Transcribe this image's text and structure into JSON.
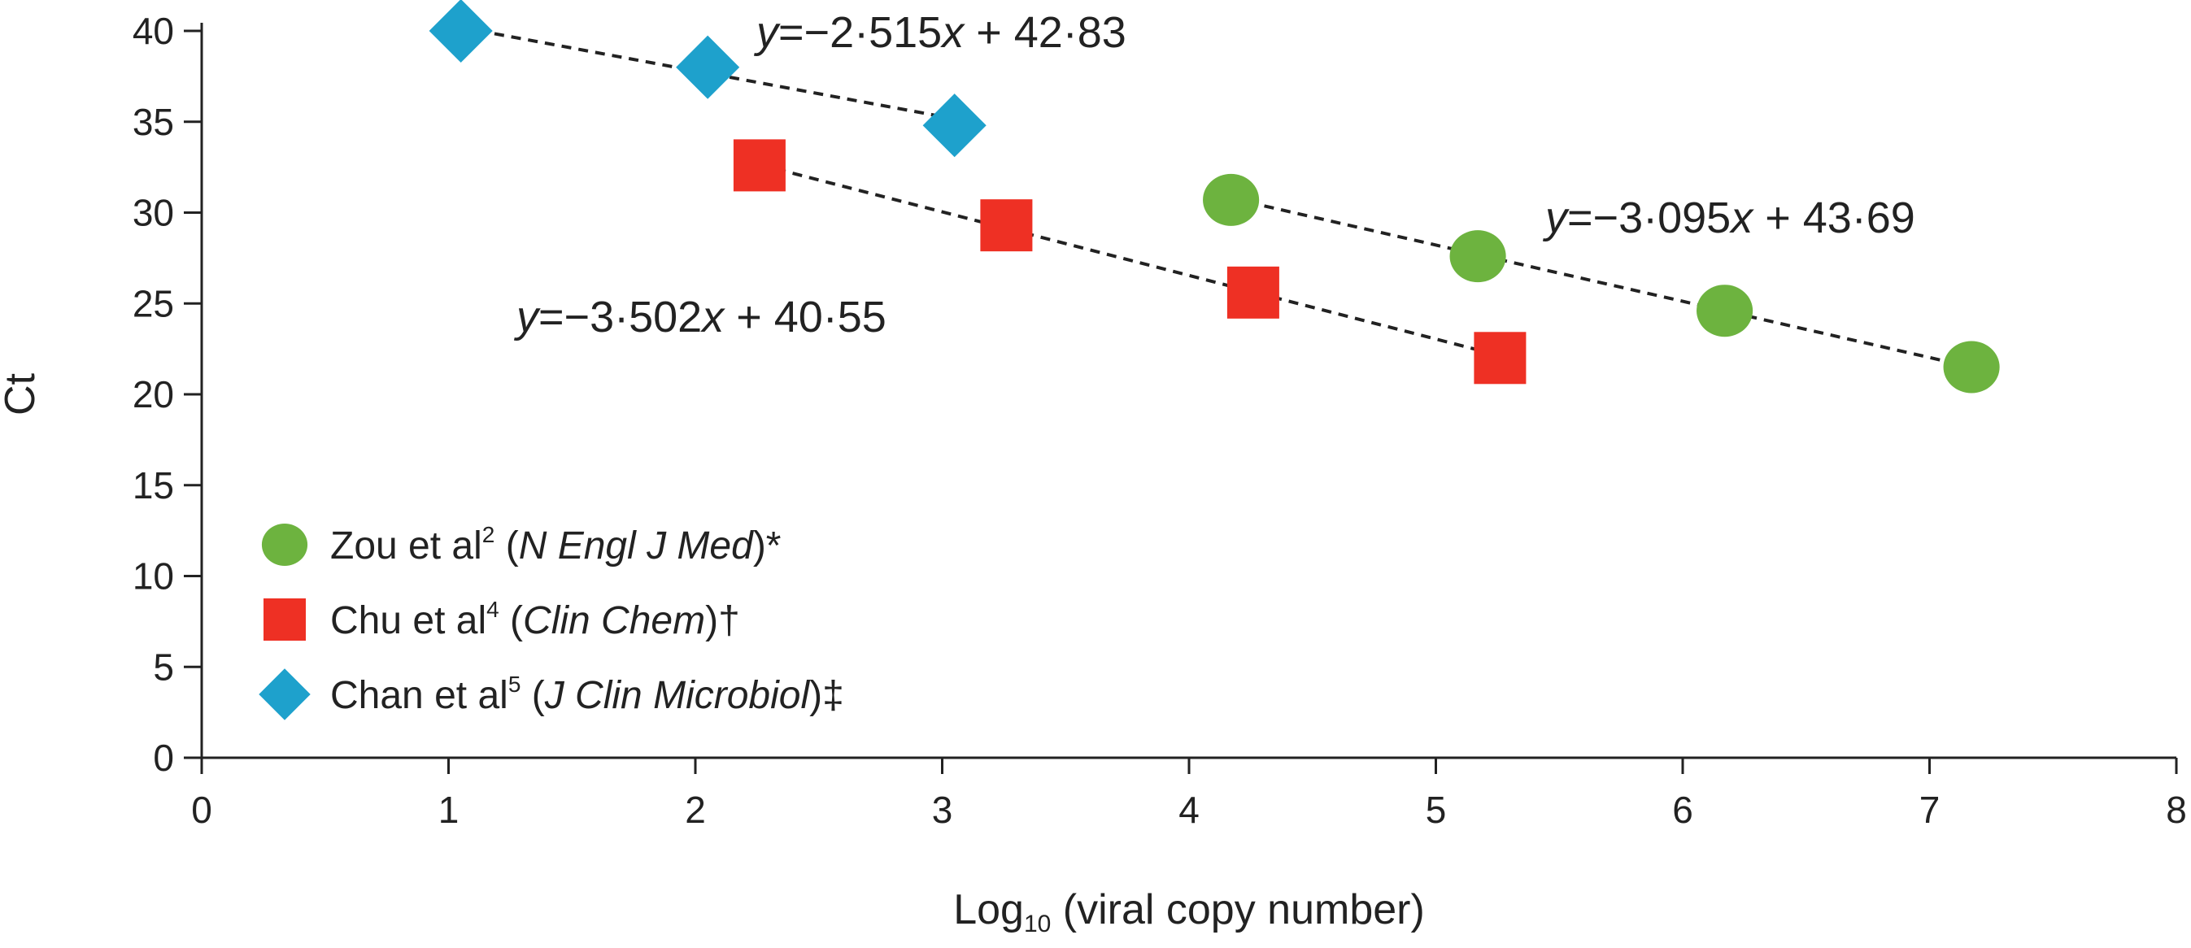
{
  "chart_data": {
    "type": "scatter",
    "title": "",
    "xlabel": "Log",
    "xlabel_sub": "10",
    "xlabel_rest": " (viral copy number)",
    "ylabel": "Ct",
    "xlim": [
      0,
      8
    ],
    "ylim": [
      0,
      40
    ],
    "x_ticks": [
      "0",
      "1",
      "2",
      "3",
      "4",
      "5",
      "6",
      "7",
      "8"
    ],
    "y_ticks": [
      "0",
      "5",
      "10",
      "15",
      "20",
      "25",
      "30",
      "35",
      "40"
    ],
    "grid": false,
    "legend_position": "bottom-left",
    "series": [
      {
        "name": "Zou et al2 (N Engl J Med)*",
        "legend": {
          "lead": "Zou et al",
          "sup": "2",
          "mid": " (",
          "ital": "N Engl J Med",
          "tail": ")*"
        },
        "marker": "circle",
        "color": "#6db33f",
        "points": [
          {
            "x": 4.17,
            "y": 30.7
          },
          {
            "x": 5.17,
            "y": 27.6
          },
          {
            "x": 6.17,
            "y": 24.6
          },
          {
            "x": 7.17,
            "y": 21.5
          }
        ],
        "fit": {
          "slope": -3.095,
          "intercept": 43.69,
          "text_var": "y",
          "text_eq": "=−3·095",
          "text_x": "x",
          "text_rest": " + 43·69"
        }
      },
      {
        "name": "Chu et al4 (Clin Chem)†",
        "legend": {
          "lead": "Chu et al",
          "sup": "4",
          "mid": " (",
          "ital": "Clin Chem",
          "tail": ")†"
        },
        "marker": "square",
        "color": "#ee3024",
        "points": [
          {
            "x": 2.26,
            "y": 32.6
          },
          {
            "x": 3.26,
            "y": 29.3
          },
          {
            "x": 4.26,
            "y": 25.6
          },
          {
            "x": 5.26,
            "y": 22.0
          }
        ],
        "fit": {
          "slope": -3.502,
          "intercept": 40.55,
          "text_var": "y",
          "text_eq": "=−3·502",
          "text_x": "x",
          "text_rest": " + 40·55"
        }
      },
      {
        "name": "Chan et al5 (J Clin Microbiol)‡",
        "legend": {
          "lead": "Chan et al",
          "sup": "5",
          "mid": " (",
          "ital": "J Clin Microbiol",
          "tail": ")‡"
        },
        "marker": "diamond",
        "color": "#1ea1cc",
        "points": [
          {
            "x": 1.05,
            "y": 40.0
          },
          {
            "x": 2.05,
            "y": 38.0
          },
          {
            "x": 3.05,
            "y": 34.8
          }
        ],
        "fit": {
          "slope": -2.515,
          "intercept": 42.83,
          "text_var": "y",
          "text_eq": "=−2·515",
          "text_x": "x",
          "text_rest": " + 42·83"
        }
      }
    ]
  }
}
